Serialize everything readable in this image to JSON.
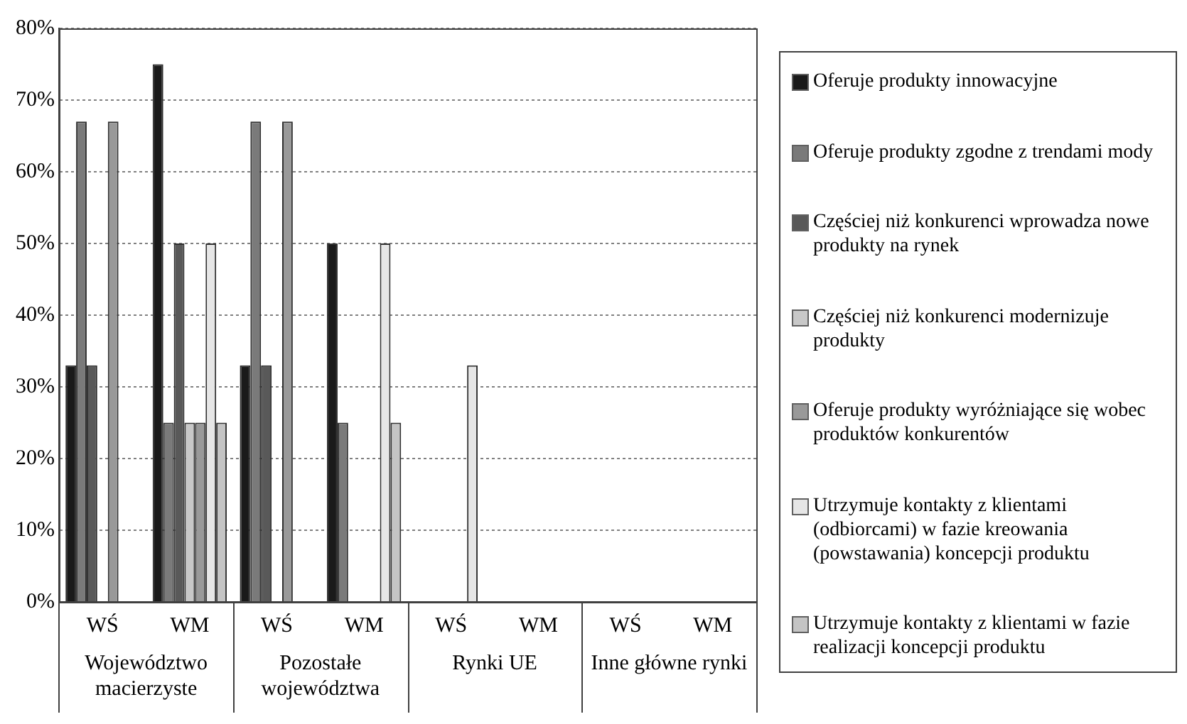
{
  "chart_data": {
    "type": "bar",
    "categories": [
      "WŚ",
      "WM",
      "WŚ",
      "WM",
      "WŚ",
      "WM",
      "WŚ",
      "WM"
    ],
    "annotations": [
      "Województwo macierzyste",
      "Pozostałe województwa",
      "Rynki UE",
      "Inne główne rynki"
    ],
    "series": [
      {
        "name": "Oferuje produkty innowacyjne",
        "color": "#1a1a1a",
        "values": [
          33,
          75,
          33,
          50,
          0,
          0,
          0,
          0
        ]
      },
      {
        "name": "Oferuje produkty zgodne z trendami mody",
        "color": "#7a7a7a",
        "values": [
          67,
          25,
          67,
          25,
          0,
          0,
          0,
          0
        ]
      },
      {
        "name": "Częściej niż konkurenci wprowadza nowe produkty na rynek",
        "color": "#595959",
        "values": [
          33,
          50,
          33,
          0,
          0,
          0,
          0,
          0
        ]
      },
      {
        "name": "Częściej niż konkurenci modernizuje produkty",
        "color": "#c8c8c8",
        "values": [
          0,
          25,
          0,
          0,
          0,
          0,
          0,
          0
        ]
      },
      {
        "name": "Oferuje produkty wyróżniające się wobec produktów konkurentów",
        "color": "#999999",
        "values": [
          67,
          25,
          67,
          0,
          0,
          0,
          0,
          0
        ]
      },
      {
        "name": "Utrzymuje kontakty z klientami (odbiorcami) w fazie kreowania (powstawania) koncepcji produktu",
        "color": "#e6e6e6",
        "values": [
          0,
          50,
          0,
          50,
          33,
          0,
          0,
          0
        ]
      },
      {
        "name": "Utrzymuje kontakty z klientami w fazie realizacji koncepcji produktu",
        "color": "#c4c4c4",
        "values": [
          0,
          25,
          0,
          25,
          0,
          0,
          0,
          0
        ]
      }
    ],
    "ylim": [
      0,
      80
    ],
    "yticks": [
      {
        "value": 0,
        "label": "0%"
      },
      {
        "value": 10,
        "label": "10%"
      },
      {
        "value": 20,
        "label": "20%"
      },
      {
        "value": 30,
        "label": "30%"
      },
      {
        "value": 40,
        "label": "40%"
      },
      {
        "value": 50,
        "label": "50%"
      },
      {
        "value": 60,
        "label": "60%"
      },
      {
        "value": 70,
        "label": "70%"
      },
      {
        "value": 80,
        "label": "80%"
      }
    ],
    "grid": "y",
    "legend": "right"
  }
}
